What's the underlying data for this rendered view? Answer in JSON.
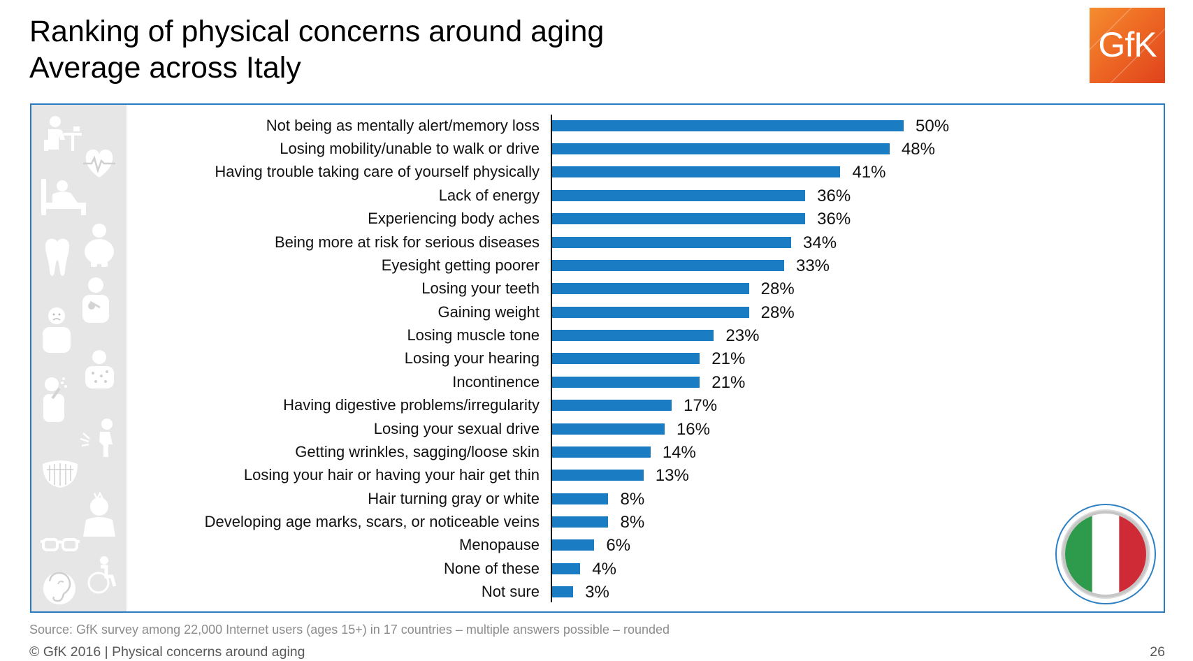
{
  "colors": {
    "bar": "#1a7cc3",
    "frame": "#2a7cc0",
    "icon_strip": "#e6e6e6",
    "logo_orange": "#ee6a24",
    "flag_green": "#2e9a4b",
    "flag_white": "#ffffff",
    "flag_red": "#ce2b37",
    "flag_ring": "#c6c6c6",
    "badge_ring": "#2f80c3"
  },
  "logo": {
    "text": "GfK"
  },
  "chart_data": {
    "type": "bar",
    "title": "Ranking of physical concerns around aging",
    "subtitle": "Average across Italy",
    "xlabel": "",
    "ylabel": "",
    "xlim": [
      0,
      50
    ],
    "grid": false,
    "value_unit": "%",
    "categories": [
      "Not being as mentally alert/memory loss",
      "Losing mobility/unable to walk or drive",
      "Having trouble taking care of yourself physically",
      "Lack of energy",
      "Experiencing body aches",
      "Being more at risk for serious diseases",
      "Eyesight getting poorer",
      "Losing your teeth",
      "Gaining weight",
      "Losing muscle tone",
      "Losing your hearing",
      "Incontinence",
      "Having digestive problems/irregularity",
      "Losing your sexual drive",
      "Getting wrinkles, sagging/loose skin",
      "Losing your hair or having your hair get thin",
      "Hair turning gray or white",
      "Developing age marks, scars, or noticeable veins",
      "Menopause",
      "None of these",
      "Not sure"
    ],
    "values": [
      50,
      48,
      41,
      36,
      36,
      34,
      33,
      28,
      28,
      23,
      21,
      21,
      17,
      16,
      14,
      13,
      8,
      8,
      6,
      4,
      3
    ]
  },
  "footer": {
    "source": "Source: GfK survey among 22,000 Internet users (ages 15+) in 17 countries – multiple answers possible – rounded",
    "copyright": "© GfK 2016 | Physical concerns around aging",
    "page": "26"
  }
}
